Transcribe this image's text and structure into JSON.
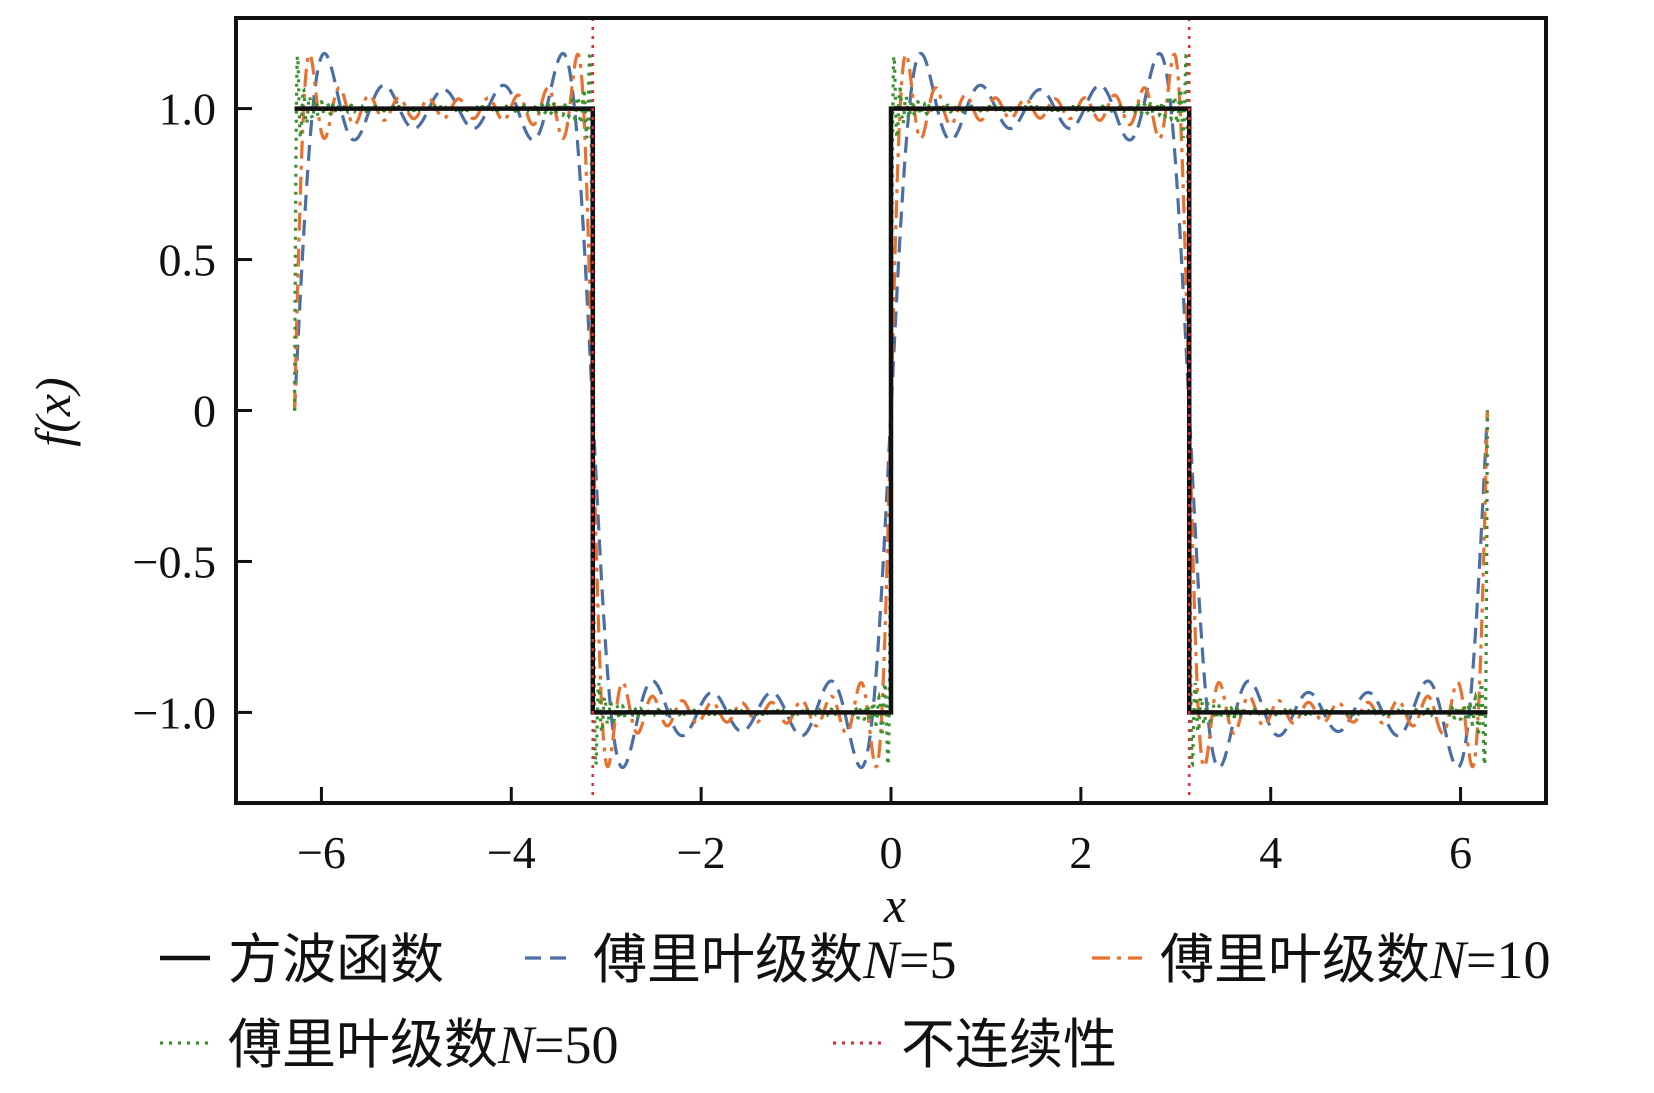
{
  "chart_data": {
    "type": "line",
    "xlabel": "x",
    "ylabel": "f(x)",
    "xlim": [
      -6.9,
      6.9
    ],
    "ylim": [
      -1.3,
      1.3
    ],
    "x_ticks": [
      -6,
      -4,
      -2,
      0,
      2,
      4,
      6
    ],
    "x_tick_labels": [
      "−6",
      "−4",
      "−2",
      "0",
      "2",
      "4",
      "6"
    ],
    "y_ticks": [
      1.0,
      0.5,
      0,
      -0.5,
      -1.0
    ],
    "y_tick_labels": [
      "1.0",
      "0.5",
      "0",
      "−0.5",
      "−1.0"
    ],
    "x_domain": [
      -6.2832,
      6.2832
    ],
    "discontinuities": [
      -3.1416,
      3.1416
    ],
    "legend_position": "bottom, outside",
    "grid": false,
    "series": [
      {
        "name": "方波函数",
        "kind": "square",
        "color": "#111111",
        "dash": "solid",
        "x": [
          -6.2832,
          -3.1416,
          -3.1416,
          0,
          0,
          3.1416,
          3.1416,
          6.2832
        ],
        "y": [
          1,
          1,
          -1,
          -1,
          1,
          1,
          -1,
          -1
        ]
      },
      {
        "name": "傅里叶级数N=5",
        "legend_prefix": "傅里叶级数",
        "legend_var": "N",
        "legend_suffix": "=5",
        "kind": "fourier",
        "terms": 5,
        "color": "#4b6fa5",
        "dash": "dashed"
      },
      {
        "name": "傅里叶级数N=10",
        "legend_prefix": "傅里叶级数",
        "legend_var": "N",
        "legend_suffix": "=10",
        "kind": "fourier",
        "terms": 10,
        "color": "#e8712e",
        "dash": "dashdot"
      },
      {
        "name": "傅里叶级数N=50",
        "legend_prefix": "傅里叶级数",
        "legend_var": "N",
        "legend_suffix": "=50",
        "kind": "fourier",
        "terms": 50,
        "color": "#3b8f2e",
        "dash": "dotted"
      },
      {
        "name": "不连续性",
        "kind": "vline",
        "color": "#e0303a",
        "dash": "dotted",
        "x": [
          -3.1416,
          3.1416
        ]
      }
    ]
  }
}
